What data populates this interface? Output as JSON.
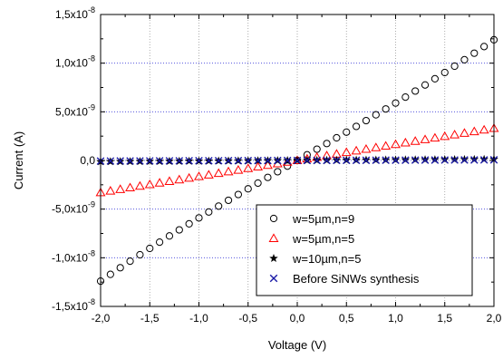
{
  "chart_data": {
    "type": "scatter",
    "xlabel": "Voltage (V)",
    "ylabel": "Current (A)",
    "xlim": [
      -2.0,
      2.0
    ],
    "ylim": [
      -1.5e-08,
      1.5e-08
    ],
    "grid": true,
    "legend_position": "bottom-right",
    "x_ticks": [
      -2.0,
      -1.5,
      -1.0,
      -0.5,
      0.0,
      0.5,
      1.0,
      1.5,
      2.0
    ],
    "x_tick_labels": [
      "-2,0",
      "-1,5",
      "-1,0",
      "-0,5",
      "0,0",
      "0,5",
      "1,0",
      "1,5",
      "2,0"
    ],
    "y_ticks": [
      -1.5e-08,
      -1e-08,
      -5e-09,
      0,
      5e-09,
      1e-08,
      1.5e-08
    ],
    "y_tick_labels": [
      {
        "mantissa": "-1,5x10",
        "exp": "-8"
      },
      {
        "mantissa": "-1,0x10",
        "exp": "-8"
      },
      {
        "mantissa": "-5,0x10",
        "exp": "-9"
      },
      {
        "mantissa": "0,0",
        "exp": ""
      },
      {
        "mantissa": "5,0x10",
        "exp": "-9"
      },
      {
        "mantissa": "1,0x10",
        "exp": "-8"
      },
      {
        "mantissa": "1,5x10",
        "exp": "-8"
      }
    ],
    "series": [
      {
        "name": "w=5µm,n=9",
        "marker": "circle",
        "color": "#000000",
        "x_start": -2.0,
        "x_end": 2.0,
        "x_step": 0.1,
        "y_coeffs": [
          0.0,
          5.8e-09,
          0.0,
          1e-10
        ]
      },
      {
        "name": "w=5µm,n=5",
        "marker": "triangle",
        "color": "#ff0000",
        "x_start": -2.0,
        "x_end": 2.0,
        "x_step": 0.1,
        "y_coeffs": [
          0.0,
          1.65e-09,
          0.0,
          0.0
        ]
      },
      {
        "name": "w=10µm,n=5",
        "marker": "star",
        "color": "#000000",
        "x_start": -2.0,
        "x_end": 2.0,
        "x_step": 0.1,
        "y_coeffs": [
          0.0,
          6e-11,
          0.0,
          0.0
        ]
      },
      {
        "name": "Before SiNWs synthesis",
        "marker": "x",
        "color": "#1a1aa6",
        "x_start": -2.0,
        "x_end": 2.0,
        "x_step": 0.1,
        "y_coeffs": [
          0.0,
          3e-11,
          0.0,
          0.0
        ]
      }
    ]
  }
}
